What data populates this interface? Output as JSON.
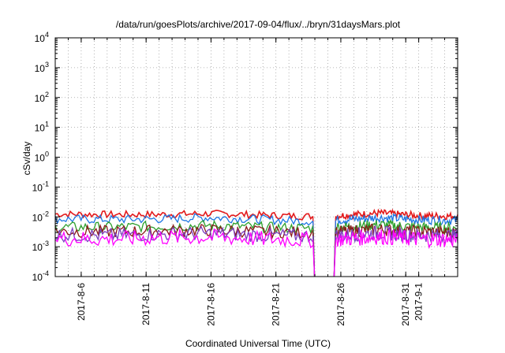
{
  "chart_data": {
    "type": "line",
    "title": "/data/run/goesPlots/archive/2017-09-04/flux/../bryn/31daysMars.plot",
    "xlabel": "Coordinated Universal Time (UTC)",
    "ylabel": "cSv/day",
    "y_scale": "log",
    "ylim": [
      0.0001,
      10000
    ],
    "xlim": [
      "2017-08-04",
      "2017-09-04"
    ],
    "grid": true,
    "y_ticks": [
      {
        "value": 0.0001,
        "base": "10",
        "exp": "-4"
      },
      {
        "value": 0.001,
        "base": "10",
        "exp": "-3"
      },
      {
        "value": 0.01,
        "base": "10",
        "exp": "-2"
      },
      {
        "value": 0.1,
        "base": "10",
        "exp": "-1"
      },
      {
        "value": 1,
        "base": "10",
        "exp": "0"
      },
      {
        "value": 10,
        "base": "10",
        "exp": "1"
      },
      {
        "value": 100,
        "base": "10",
        "exp": "2"
      },
      {
        "value": 1000,
        "base": "10",
        "exp": "3"
      },
      {
        "value": 10000,
        "base": "10",
        "exp": "4"
      }
    ],
    "x_ticks": [
      {
        "date": "2017-08-06",
        "label": "2017-8-6"
      },
      {
        "date": "2017-08-11",
        "label": "2017-8-11"
      },
      {
        "date": "2017-08-16",
        "label": "2017-8-16"
      },
      {
        "date": "2017-08-21",
        "label": "2017-8-21"
      },
      {
        "date": "2017-08-26",
        "label": "2017-8-26"
      },
      {
        "date": "2017-08-31",
        "label": "2017-8-31"
      },
      {
        "date": "2017-09-01",
        "label": "2017-9-1"
      }
    ],
    "data_gap": [
      "2017-08-24",
      "2017-08-25"
    ],
    "series": [
      {
        "color": "#e31a1c",
        "x": [
          "2017-08-04",
          "2017-08-08",
          "2017-08-12",
          "2017-08-16",
          "2017-08-20",
          "2017-08-23",
          "2017-08-25",
          "2017-08-29",
          "2017-09-01",
          "2017-09-04"
        ],
        "y": [
          0.0125,
          0.012,
          0.012,
          0.013,
          0.0115,
          0.0105,
          0.0105,
          0.0135,
          0.011,
          0.0105
        ]
      },
      {
        "color": "#1f77e4",
        "x": [
          "2017-08-04",
          "2017-08-08",
          "2017-08-12",
          "2017-08-16",
          "2017-08-20",
          "2017-08-23",
          "2017-08-25",
          "2017-08-29",
          "2017-09-01",
          "2017-09-04"
        ],
        "y": [
          0.0085,
          0.0082,
          0.0085,
          0.0095,
          0.0082,
          0.0072,
          0.0075,
          0.0095,
          0.008,
          0.0075
        ]
      },
      {
        "color": "#2ca02c",
        "x": [
          "2017-08-04",
          "2017-08-08",
          "2017-08-12",
          "2017-08-16",
          "2017-08-20",
          "2017-08-23",
          "2017-08-25",
          "2017-08-29",
          "2017-09-01",
          "2017-09-04"
        ],
        "y": [
          0.0045,
          0.0045,
          0.0048,
          0.0052,
          0.0045,
          0.0042,
          0.0042,
          0.0055,
          0.0045,
          0.0042
        ]
      },
      {
        "color": "#8b1a1a",
        "x": [
          "2017-08-04",
          "2017-08-08",
          "2017-08-12",
          "2017-08-16",
          "2017-08-20",
          "2017-08-23",
          "2017-08-25",
          "2017-08-29",
          "2017-09-01",
          "2017-09-04"
        ],
        "y": [
          0.0033,
          0.0032,
          0.0034,
          0.0036,
          0.0032,
          0.003,
          0.003,
          0.0038,
          0.0032,
          0.003
        ]
      },
      {
        "color": "#7b3fbf",
        "x": [
          "2017-08-04",
          "2017-08-08",
          "2017-08-12",
          "2017-08-16",
          "2017-08-20",
          "2017-08-23",
          "2017-08-25",
          "2017-08-29",
          "2017-09-01",
          "2017-09-04"
        ],
        "y": [
          0.0025,
          0.0024,
          0.0026,
          0.0028,
          0.0024,
          0.0023,
          0.0023,
          0.0029,
          0.0024,
          0.0023
        ]
      },
      {
        "color": "#ff00ff",
        "x": [
          "2017-08-04",
          "2017-08-08",
          "2017-08-12",
          "2017-08-16",
          "2017-08-20",
          "2017-08-23",
          "2017-08-25",
          "2017-08-29",
          "2017-09-01",
          "2017-09-04"
        ],
        "y": [
          0.0019,
          0.0018,
          0.002,
          0.0021,
          0.0018,
          0.0017,
          0.0017,
          0.0022,
          0.0018,
          0.0017
        ]
      }
    ]
  }
}
